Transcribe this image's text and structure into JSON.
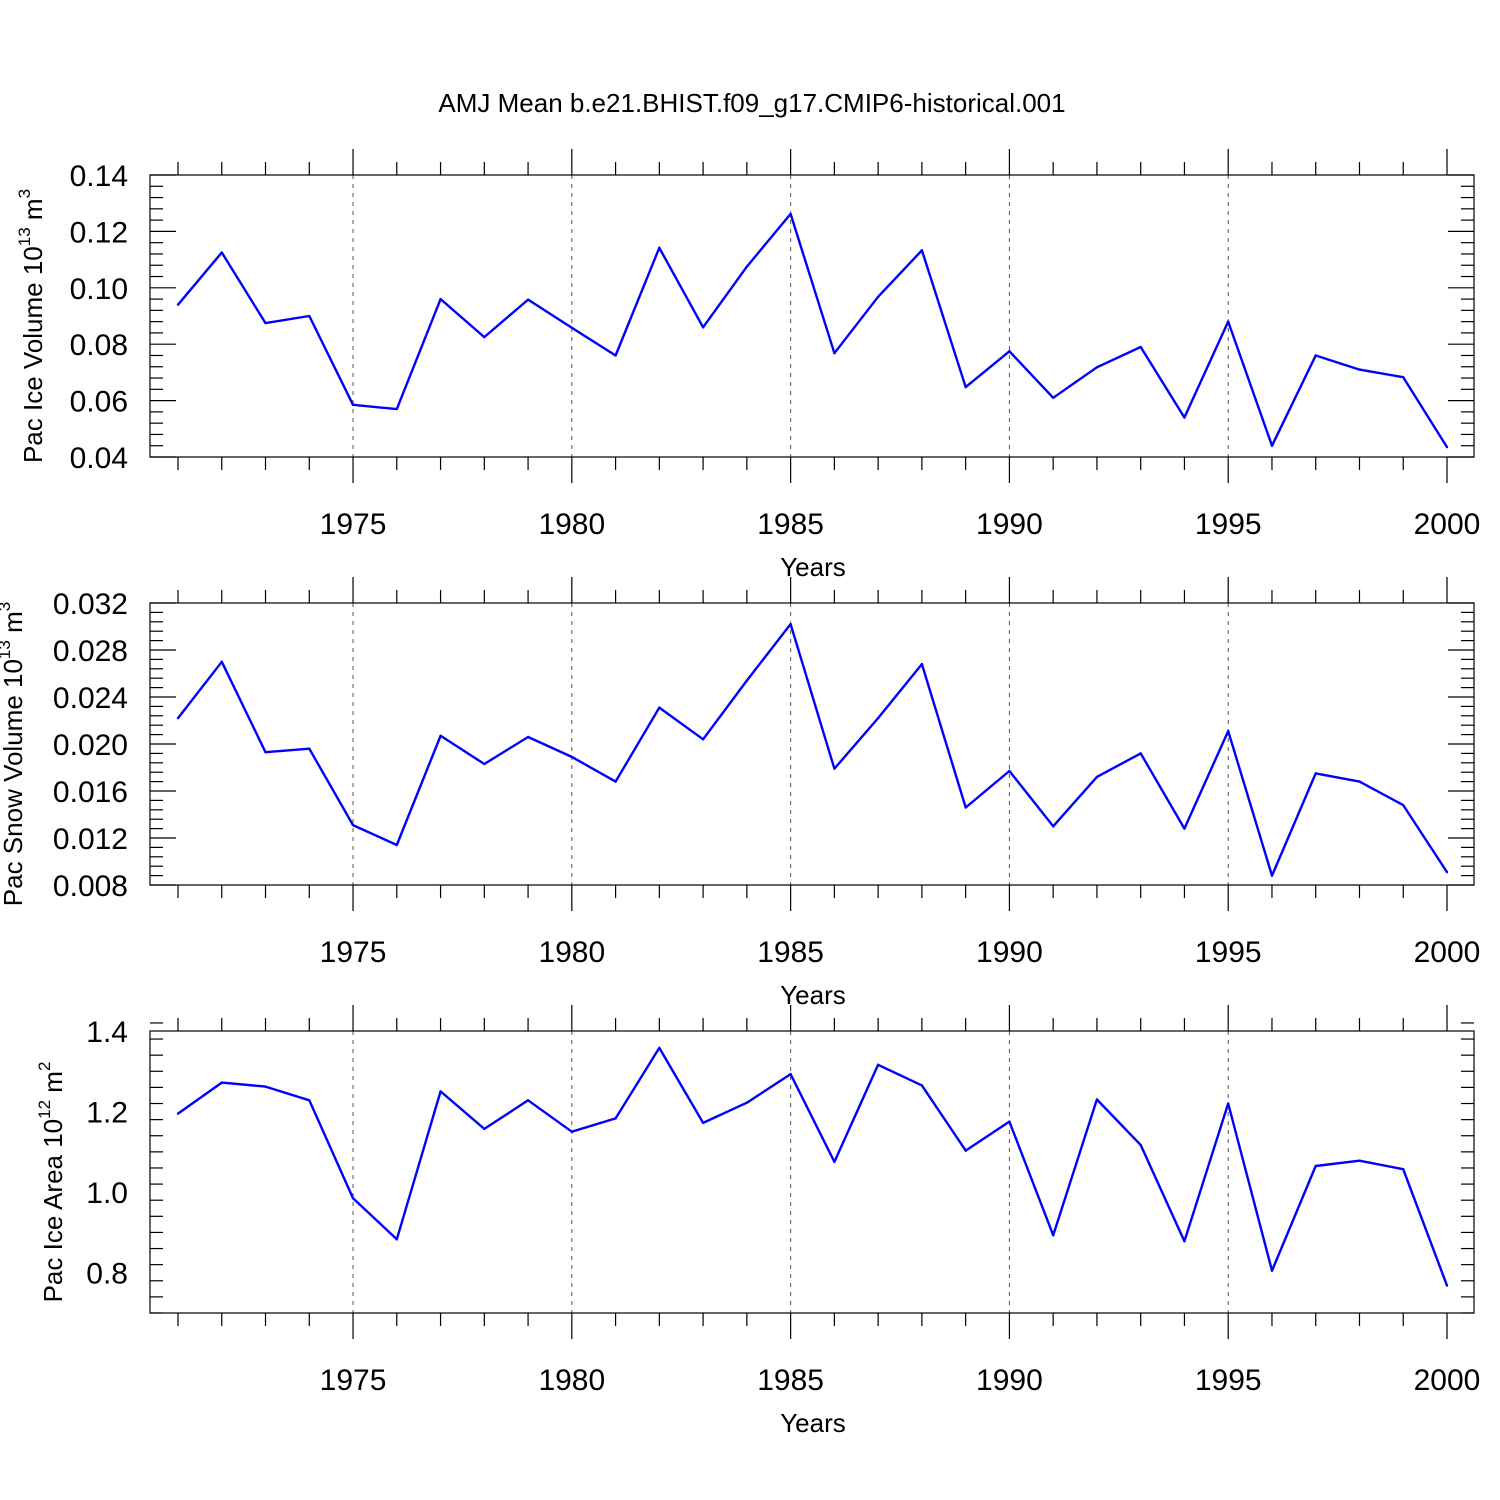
{
  "title": "AMJ Mean b.e21.BHIST.f09_g17.CMIP6-historical.001",
  "colors": {
    "series": "#0000ff",
    "axes": "#000000",
    "grid": "#555555"
  },
  "chart_data": [
    {
      "type": "line",
      "xlabel": "Years",
      "ylabel": "Pac Ice Volume 10",
      "ylabel_exp": "13",
      "ylabel_unit": " m",
      "ylabel_unit_exp": "3",
      "xlim": [
        1971,
        2000
      ],
      "ylim": [
        0.04,
        0.14
      ],
      "yticks": [
        0.04,
        0.06,
        0.08,
        0.1,
        0.12,
        0.14
      ],
      "ytick_labels": [
        "0.04",
        "0.06",
        "0.08",
        "0.10",
        "0.12",
        "0.14"
      ],
      "xticks": [
        1975,
        1980,
        1985,
        1990,
        1995,
        2000
      ],
      "xtick_labels": [
        "1975",
        "1980",
        "1985",
        "1990",
        "1995",
        "2000"
      ],
      "grid_x": true,
      "x": [
        1971,
        1972,
        1973,
        1974,
        1975,
        1976,
        1977,
        1978,
        1979,
        1980,
        1981,
        1982,
        1983,
        1984,
        1985,
        1986,
        1987,
        1988,
        1989,
        1990,
        1991,
        1992,
        1993,
        1994,
        1995,
        1996,
        1997,
        1998,
        1999,
        2000
      ],
      "series": [
        {
          "values": [
            0.094,
            0.1125,
            0.0875,
            0.09,
            0.0585,
            0.057,
            0.096,
            0.0825,
            0.0958,
            0.0858,
            0.076,
            0.1142,
            0.086,
            0.1075,
            0.1262,
            0.0768,
            0.0968,
            0.1133,
            0.0648,
            0.0775,
            0.061,
            0.0718,
            0.079,
            0.054,
            0.088,
            0.044,
            0.076,
            0.071,
            0.0683,
            0.0435
          ]
        }
      ]
    },
    {
      "type": "line",
      "xlabel": "Years",
      "ylabel": "Pac Snow Volume 10",
      "ylabel_exp": "13",
      "ylabel_unit": " m",
      "ylabel_unit_exp": "3",
      "xlim": [
        1971,
        2000
      ],
      "ylim": [
        0.008,
        0.032
      ],
      "yticks": [
        0.008,
        0.012,
        0.016,
        0.02,
        0.024,
        0.028,
        0.032
      ],
      "ytick_labels": [
        "0.008",
        "0.012",
        "0.016",
        "0.020",
        "0.024",
        "0.028",
        "0.032"
      ],
      "xticks": [
        1975,
        1980,
        1985,
        1990,
        1995,
        2000
      ],
      "xtick_labels": [
        "1975",
        "1980",
        "1985",
        "1990",
        "1995",
        "2000"
      ],
      "grid_x": true,
      "x": [
        1971,
        1972,
        1973,
        1974,
        1975,
        1976,
        1977,
        1978,
        1979,
        1980,
        1981,
        1982,
        1983,
        1984,
        1985,
        1986,
        1987,
        1988,
        1989,
        1990,
        1991,
        1992,
        1993,
        1994,
        1995,
        1996,
        1997,
        1998,
        1999,
        2000
      ],
      "series": [
        {
          "values": [
            0.0222,
            0.027,
            0.0193,
            0.0196,
            0.0131,
            0.0114,
            0.0207,
            0.0183,
            0.0206,
            0.0189,
            0.0168,
            0.0231,
            0.0204,
            0.0254,
            0.0302,
            0.0179,
            0.0222,
            0.0268,
            0.0146,
            0.0177,
            0.013,
            0.0172,
            0.0192,
            0.0128,
            0.0211,
            0.0088,
            0.0175,
            0.0168,
            0.0148,
            0.0091
          ]
        }
      ]
    },
    {
      "type": "line",
      "xlabel": "Years",
      "ylabel": "Pac Ice Area 10",
      "ylabel_exp": "12",
      "ylabel_unit": " m",
      "ylabel_unit_exp": "2",
      "xlim": [
        1971,
        2000
      ],
      "ylim": [
        0.7,
        1.4
      ],
      "yticks": [
        0.8,
        1.0,
        1.2,
        1.4
      ],
      "ytick_labels": [
        "0.8",
        "1.0",
        "1.2",
        "1.4"
      ],
      "xticks": [
        1975,
        1980,
        1985,
        1990,
        1995,
        2000
      ],
      "xtick_labels": [
        "1975",
        "1980",
        "1985",
        "1990",
        "1995",
        "2000"
      ],
      "grid_x": true,
      "x": [
        1971,
        1972,
        1973,
        1974,
        1975,
        1976,
        1977,
        1978,
        1979,
        1980,
        1981,
        1982,
        1983,
        1984,
        1985,
        1986,
        1987,
        1988,
        1989,
        1990,
        1991,
        1992,
        1993,
        1994,
        1995,
        1996,
        1997,
        1998,
        1999,
        2000
      ],
      "series": [
        {
          "values": [
            1.195,
            1.272,
            1.262,
            1.228,
            0.985,
            0.883,
            1.25,
            1.157,
            1.228,
            1.15,
            1.183,
            1.358,
            1.172,
            1.222,
            1.293,
            1.075,
            1.316,
            1.265,
            1.103,
            1.175,
            0.893,
            1.23,
            1.117,
            0.878,
            1.22,
            0.805,
            1.065,
            1.078,
            1.057,
            0.768
          ]
        }
      ]
    }
  ]
}
